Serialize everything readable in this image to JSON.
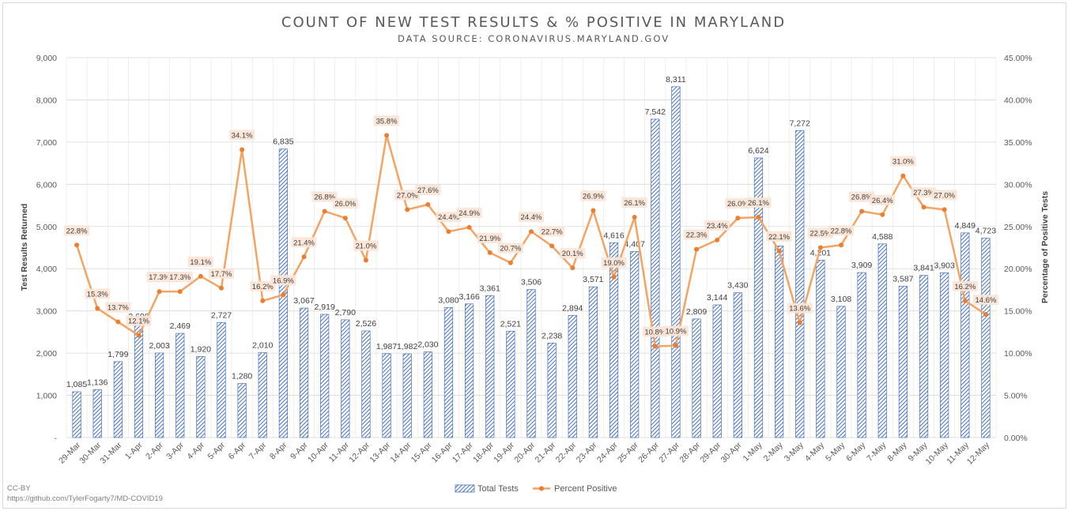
{
  "chart_data": {
    "type": "bar",
    "title": "COUNT OF NEW TEST RESULTS & % POSITIVE IN MARYLAND",
    "subtitle": "DATA SOURCE: CORONAVIRUS.MARYLAND.GOV",
    "ylabel": "Test Results Returned",
    "y2label": "Percentage of Positive Tests",
    "ylim": [
      0,
      9000
    ],
    "y2lim": [
      0,
      45
    ],
    "y_ticks": [
      "-",
      "1,000",
      "2,000",
      "3,000",
      "4,000",
      "5,000",
      "6,000",
      "7,000",
      "8,000",
      "9,000"
    ],
    "y2_ticks": [
      "0.00%",
      "5.00%",
      "10.00%",
      "15.00%",
      "20.00%",
      "25.00%",
      "30.00%",
      "35.00%",
      "40.00%",
      "45.00%"
    ],
    "grid": true,
    "legend_position": "bottom",
    "categories": [
      "29-Mar",
      "30-Mar",
      "31-Mar",
      "1-Apr",
      "2-Apr",
      "3-Apr",
      "4-Apr",
      "5-Apr",
      "6-Apr",
      "7-Apr",
      "8-Apr",
      "9-Apr",
      "10-Apr",
      "11-Apr",
      "12-Apr",
      "13-Apr",
      "14-Apr",
      "15-Apr",
      "16-Apr",
      "17-Apr",
      "18-Apr",
      "19-Apr",
      "20-Apr",
      "21-Apr",
      "22-Apr",
      "23-Apr",
      "24-Apr",
      "25-Apr",
      "26-Apr",
      "27-Apr",
      "28-Apr",
      "29-Apr",
      "30-Apr",
      "1-May",
      "2-May",
      "3-May",
      "4-May",
      "5-May",
      "6-May",
      "7-May",
      "8-May",
      "9-May",
      "10-May",
      "11-May",
      "12-May"
    ],
    "series": [
      {
        "name": "Total Tests",
        "type": "bar",
        "axis": "left",
        "color": "#4472c4",
        "values": [
          1085,
          1136,
          1799,
          2690,
          2003,
          2469,
          1920,
          2727,
          1280,
          2010,
          6835,
          3067,
          2919,
          2790,
          2526,
          1987,
          1982,
          2030,
          3080,
          3166,
          3361,
          2521,
          3506,
          2238,
          2894,
          3571,
          4616,
          4407,
          7542,
          8311,
          2809,
          3144,
          3430,
          6624,
          4539,
          7272,
          4201,
          3108,
          3909,
          4588,
          3587,
          3841,
          3903,
          4849,
          4723
        ],
        "labels": [
          "1,085",
          "1,136",
          "1,799",
          "2,690",
          "2,003",
          "2,469",
          "1,920",
          "2,727",
          "1,280",
          "2,010",
          "6,835",
          "3,067",
          "2,919",
          "2,790",
          "2,526",
          "1,987",
          "1,982",
          "2,030",
          "3,080",
          "3,166",
          "3,361",
          "2,521",
          "3,506",
          "2,238",
          "2,894",
          "3,571",
          "4,616",
          "4,407",
          "7,542",
          "8,311",
          "2,809",
          "3,144",
          "3,430",
          "6,624",
          "4,539",
          "7,272",
          "4,201",
          "3,108",
          "3,909",
          "4,588",
          "3,587",
          "3,841",
          "3,903",
          "4,849",
          "4,723"
        ]
      },
      {
        "name": "Percent Positive",
        "type": "line",
        "axis": "right",
        "color": "#f4a460",
        "values": [
          22.8,
          15.3,
          13.7,
          12.1,
          17.3,
          17.3,
          19.1,
          17.7,
          34.1,
          16.2,
          16.9,
          21.4,
          26.8,
          26.0,
          21.0,
          35.8,
          27.0,
          27.6,
          24.4,
          24.9,
          21.9,
          20.7,
          24.4,
          22.7,
          20.1,
          26.9,
          19.0,
          26.1,
          10.8,
          10.9,
          22.3,
          23.4,
          26.0,
          26.1,
          22.1,
          13.6,
          22.5,
          22.8,
          26.8,
          26.4,
          31.0,
          27.3,
          27.0,
          16.2,
          14.6
        ],
        "labels": [
          "22.8%",
          "15.3%",
          "13.7%",
          "12.1%",
          "17.3%",
          "17.3%",
          "19.1%",
          "17.7%",
          "34.1%",
          "16.2%",
          "16.9%",
          "21.4%",
          "26.8%",
          "26.0%",
          "21.0%",
          "35.8%",
          "27.0%",
          "27.6%",
          "24.4%",
          "24.9%",
          "21.9%",
          "20.7%",
          "24.4%",
          "22.7%",
          "20.1%",
          "26.9%",
          "19.0%",
          "26.1%",
          "10.8%",
          "10.9%",
          "22.3%",
          "23.4%",
          "26.0%",
          "26.1%",
          "22.1%",
          "13.6%",
          "22.5%",
          "22.8%",
          "26.8%",
          "26.4%",
          "31.0%",
          "27.3%",
          "27.0%",
          "16.2%",
          "14.6%"
        ]
      }
    ],
    "legend": [
      "Total Tests",
      "Percent Positive"
    ]
  },
  "credit": {
    "license": "CC-BY",
    "source_url": "https://github.com/TylerFogarty7/MD-COVID19"
  },
  "colors": {
    "bar": "#4472c4",
    "line": "#f4a460",
    "label_bg": "#fbe5d6",
    "grid": "#d9d9d9"
  }
}
